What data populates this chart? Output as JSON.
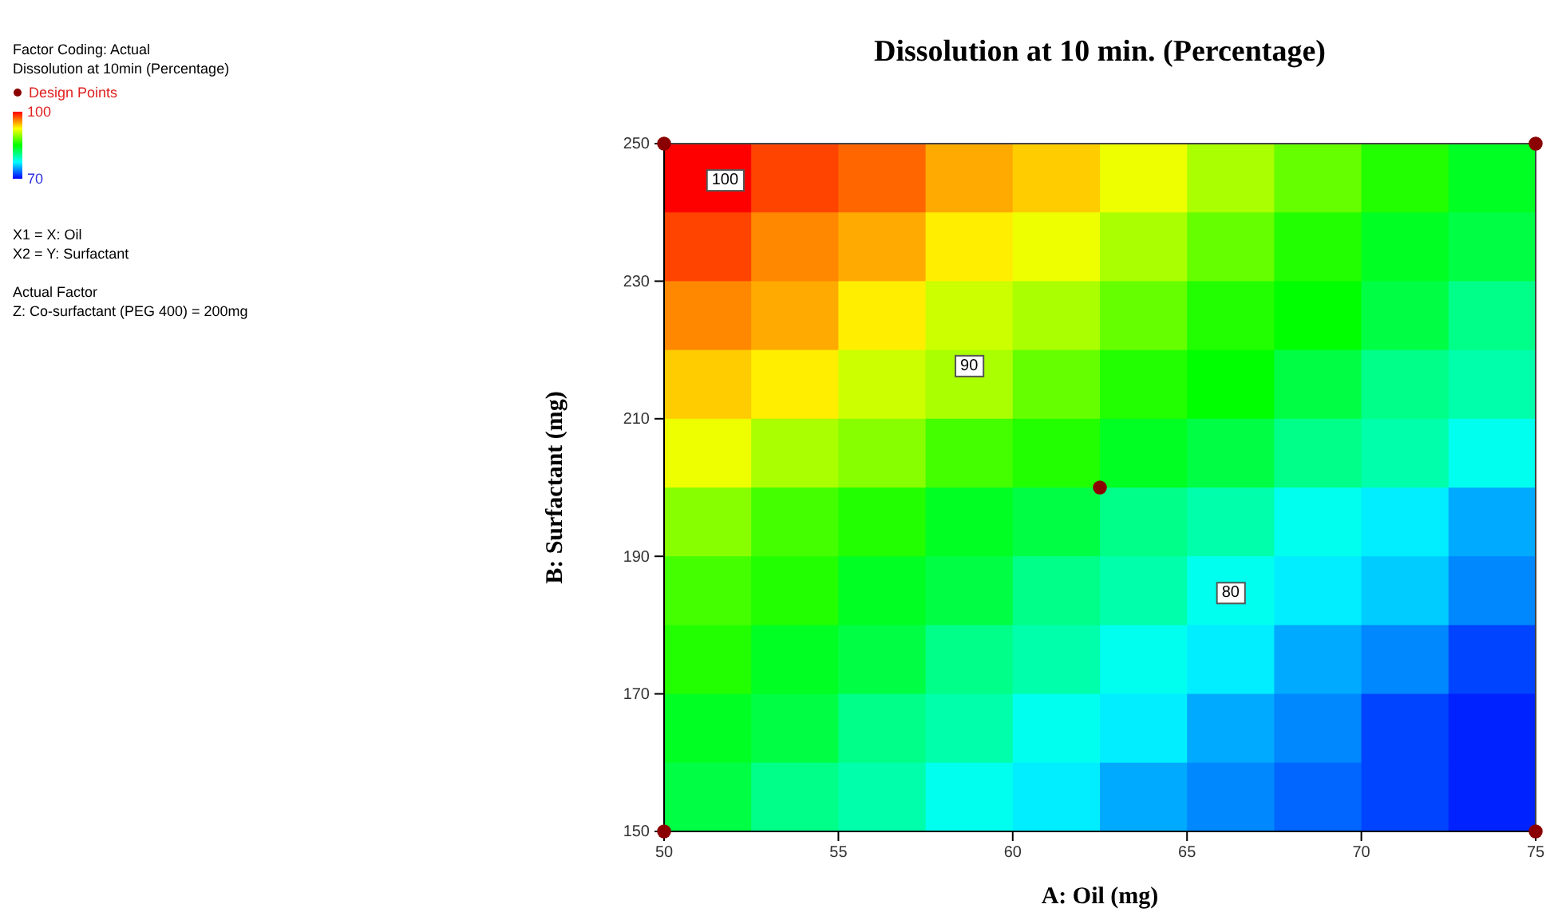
{
  "chart_data": {
    "type": "heatmap",
    "title": "Dissolution at 10 min. (Percentage)",
    "xlabel": "A: Oil (mg)",
    "ylabel": "B: Surfactant (mg)",
    "clabel": "Dissolution at 10min (Percentage)",
    "x": [
      51.25,
      53.75,
      56.25,
      58.75,
      61.25,
      63.75,
      66.25,
      68.75,
      71.25,
      73.75
    ],
    "xlim": [
      50,
      75
    ],
    "xticks": [
      50,
      55,
      60,
      65,
      70,
      75
    ],
    "ylim": [
      150,
      250
    ],
    "yticks": [
      150,
      170,
      190,
      210,
      230,
      250
    ],
    "clim": [
      70,
      100
    ],
    "cticks": [
      70,
      100
    ],
    "colors": [
      "#0000ff",
      "#00ffff",
      "#00ff00",
      "#ffff00",
      "#ff0000"
    ],
    "cells": [
      [
        100,
        98,
        97,
        95,
        94,
        92,
        90,
        88,
        86,
        84
      ],
      [
        98,
        96,
        95,
        93,
        92,
        90,
        88,
        86,
        84,
        83
      ],
      [
        96,
        95,
        93,
        91,
        90,
        88,
        86,
        85,
        83,
        81
      ],
      [
        94,
        93,
        91,
        90,
        88,
        86,
        85,
        83,
        81,
        80
      ],
      [
        92,
        90,
        89,
        87,
        86,
        84,
        83,
        81,
        80,
        78
      ],
      [
        89,
        87,
        86,
        84,
        83,
        81,
        80,
        78,
        77,
        75
      ],
      [
        87,
        86,
        84,
        83,
        81,
        80,
        78,
        77,
        76,
        74
      ],
      [
        86,
        84,
        83,
        81,
        80,
        78,
        77,
        75,
        74,
        72
      ],
      [
        84,
        83,
        81,
        80,
        78,
        77,
        75,
        74,
        72,
        71
      ],
      [
        83,
        81,
        80,
        78,
        77,
        75,
        74,
        73,
        72,
        71
      ]
    ],
    "series": [
      {
        "name": "Design Points",
        "type": "scatter",
        "color": "#8b0000",
        "x": [
          50,
          75,
          50,
          75,
          62.5
        ],
        "values": [
          150,
          150,
          250,
          250,
          200
        ]
      }
    ],
    "marker": "circle",
    "legend": "top left",
    "annotations": [
      "100",
      "90",
      "80",
      "Factor Coding: Actual",
      "X1 = X: Oil",
      "X2 = Y: Surfactant",
      "Actual Factor",
      "Z: Co-surfactant (PEG 400) = 200mg"
    ]
  }
}
